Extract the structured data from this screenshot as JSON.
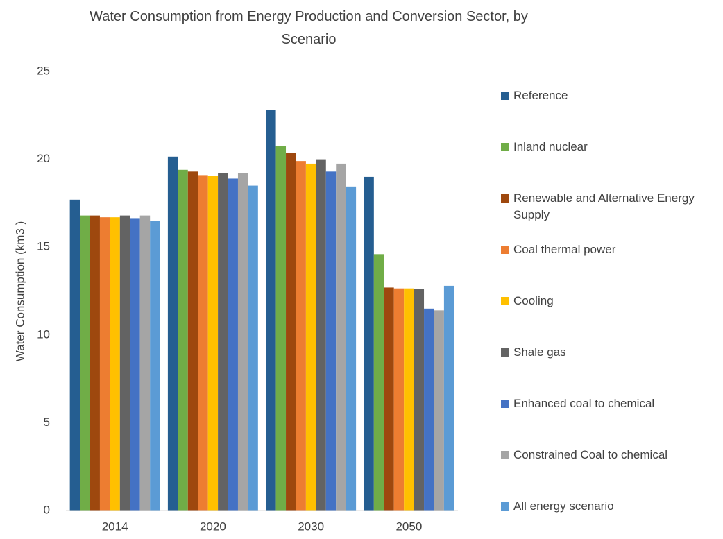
{
  "chart_data": {
    "type": "bar",
    "title": "Water Consumption from Energy Production and Conversion Sector, by Scenario",
    "y_label": "Water Consumption (km3 )",
    "categories": [
      "2014",
      "2020",
      "2030",
      "2050"
    ],
    "series": [
      {
        "name": "Reference",
        "color": "#255e91",
        "values": [
          17.7,
          20.15,
          22.8,
          19.0
        ]
      },
      {
        "name": "Inland nuclear",
        "color": "#70ad47",
        "values": [
          16.8,
          19.4,
          20.75,
          14.6
        ]
      },
      {
        "name": "Renewable and Alternative Energy Supply",
        "color": "#9e480e",
        "values": [
          16.8,
          19.3,
          20.35,
          12.7
        ]
      },
      {
        "name": "Coal thermal power",
        "color": "#ed7d31",
        "values": [
          16.7,
          19.1,
          19.9,
          12.65
        ]
      },
      {
        "name": "Cooling",
        "color": "#ffc000",
        "values": [
          16.7,
          19.05,
          19.75,
          12.65
        ]
      },
      {
        "name": "Shale gas",
        "color": "#636363",
        "values": [
          16.8,
          19.2,
          20.0,
          12.6
        ]
      },
      {
        "name": "Enhanced coal to chemical",
        "color": "#4472c4",
        "values": [
          16.65,
          18.9,
          19.3,
          11.5
        ]
      },
      {
        "name": "Constrained Coal to chemical",
        "color": "#a5a5a5",
        "values": [
          16.8,
          19.2,
          19.75,
          11.4
        ]
      },
      {
        "name": "All energy scenario",
        "color": "#5b9bd5",
        "values": [
          16.5,
          18.5,
          18.45,
          12.8
        ]
      }
    ],
    "ylim": [
      0,
      25
    ],
    "yticks": [
      0,
      5,
      10,
      15,
      20,
      25
    ],
    "grid": false,
    "legend": "right"
  }
}
